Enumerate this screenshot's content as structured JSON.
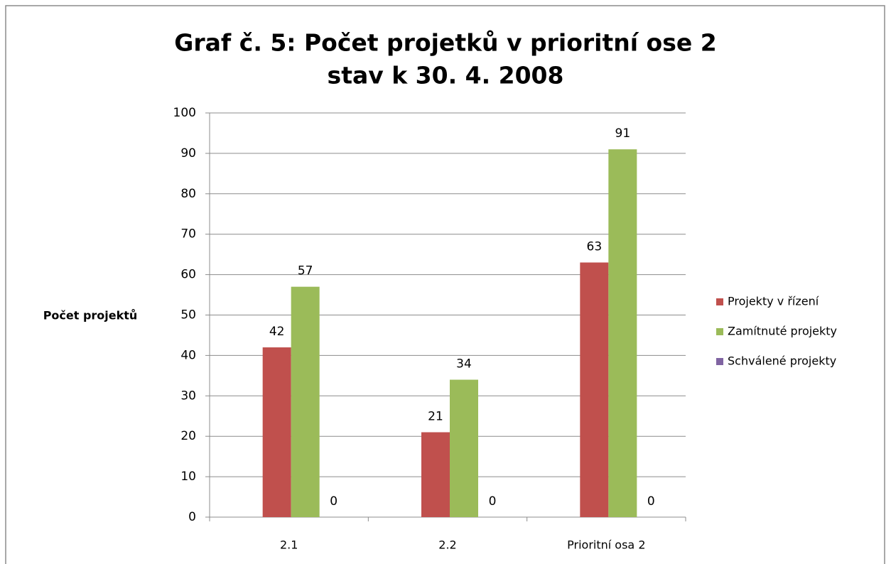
{
  "chart_data": {
    "type": "bar",
    "title": "Graf č. 5: Počet projetků v prioritní ose 2",
    "subtitle": "stav k 30. 4. 2008",
    "y_label": "Počet projektů",
    "categories": [
      "2.1",
      "2.2",
      "Prioritní osa 2"
    ],
    "series": [
      {
        "name": "Projekty v řízení",
        "color": "#c0504d",
        "values": [
          42,
          21,
          63
        ]
      },
      {
        "name": "Zamítnuté projekty",
        "color": "#9bbb59",
        "values": [
          57,
          34,
          91
        ]
      },
      {
        "name": "Schválené projekty",
        "color": "#8064a2",
        "values": [
          0,
          0,
          0
        ]
      }
    ],
    "ylim": [
      0,
      100
    ],
    "yticks": [
      0,
      10,
      20,
      30,
      40,
      50,
      60,
      70,
      80,
      90,
      100
    ],
    "grid": true,
    "legend": "right"
  }
}
